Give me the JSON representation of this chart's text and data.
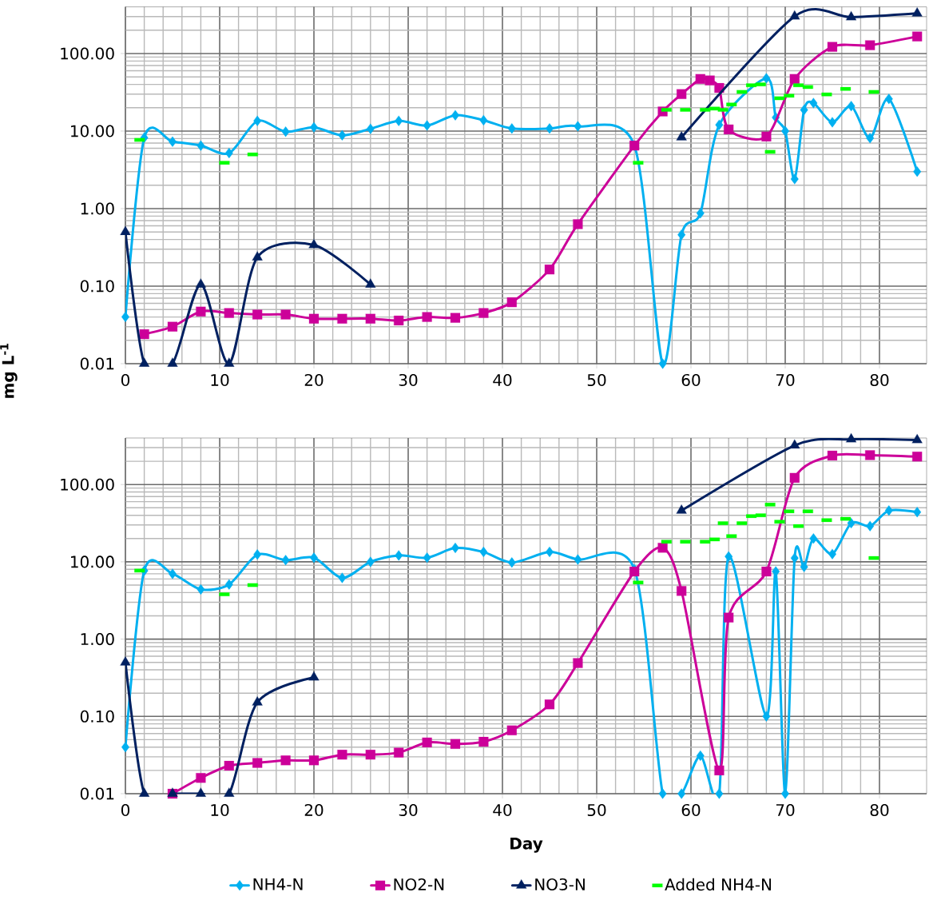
{
  "chart_data": [
    {
      "type": "line",
      "ylabel": "mg L$^{-1}$",
      "log": "y",
      "grid": true,
      "xlim": [
        0,
        85
      ],
      "ylim": [
        0.01,
        400
      ],
      "xticks": [
        0,
        10,
        20,
        30,
        40,
        50,
        60,
        70,
        80
      ],
      "yticks": [
        {
          "value": 0.01,
          "label": "0.01"
        },
        {
          "value": 0.1,
          "label": "0.10"
        },
        {
          "value": 1,
          "label": "1.00"
        },
        {
          "value": 10,
          "label": "10.00"
        },
        {
          "value": 100,
          "label": "100.00"
        }
      ],
      "series": [
        {
          "type": "line",
          "marker": "diamond",
          "color": "#00b0f0",
          "x": [
            0,
            2,
            5,
            8,
            11,
            14,
            17,
            20,
            23,
            26,
            29,
            32,
            35,
            38,
            41,
            45,
            48,
            54,
            57,
            59,
            61,
            63,
            68,
            69,
            70,
            71,
            72,
            73,
            75,
            77,
            79,
            81,
            84
          ],
          "values": [
            0.04,
            8.2,
            7.3,
            6.5,
            5.2,
            13.5,
            9.8,
            11.2,
            8.8,
            10.7,
            13.5,
            11.8,
            16,
            13.8,
            10.8,
            10.8,
            11.5,
            6.5,
            0.01,
            0.46,
            0.87,
            12,
            48,
            15,
            10,
            2.4,
            18.7,
            23,
            13,
            21,
            8.1,
            26,
            3.0
          ]
        },
        {
          "type": "line",
          "marker": "square",
          "color": "#cc0099",
          "x": [
            2,
            5,
            8,
            11,
            14,
            17,
            20,
            23,
            26,
            29,
            32,
            35,
            38,
            41,
            45,
            48,
            54,
            57,
            59,
            61,
            62,
            63,
            64,
            68,
            71,
            75,
            79,
            84
          ],
          "values": [
            0.024,
            0.03,
            0.047,
            0.045,
            0.043,
            0.043,
            0.038,
            0.038,
            0.038,
            0.036,
            0.04,
            0.039,
            0.045,
            0.062,
            0.164,
            0.63,
            6.5,
            17.9,
            30,
            47,
            45,
            36,
            10.5,
            8.5,
            47,
            122,
            128,
            166
          ]
        },
        {
          "type": "line",
          "marker": "triangle",
          "color": "#002060",
          "x": [
            0,
            2,
            5,
            8,
            11,
            14,
            20,
            26,
            null,
            59,
            71,
            77,
            84
          ],
          "values": [
            0.5,
            0.01,
            0.01,
            0.105,
            0.01,
            0.235,
            0.34,
            0.105,
            null,
            8.3,
            302,
            295,
            330
          ]
        },
        {
          "type": "scatter",
          "color": "#00ff00",
          "x": [
            1.5,
            10.5,
            13.5,
            54.4,
            57.4,
            59.4,
            61.5,
            62.5,
            63.4,
            64.3,
            65.4,
            66.4,
            67.4,
            68.4,
            69.4,
            70.4,
            71.4,
            72.4,
            74.4,
            76.4,
            79.4
          ],
          "values": [
            7.7,
            3.9,
            5.0,
            3.9,
            18.8,
            18.8,
            18.8,
            19.5,
            18.8,
            22,
            32,
            39,
            40,
            5.4,
            26.5,
            28.6,
            39,
            37,
            29.7,
            35,
            32
          ]
        }
      ]
    },
    {
      "type": "line",
      "xlabel": "Day",
      "log": "y",
      "grid": true,
      "legend": "bottom",
      "xlim": [
        0,
        85
      ],
      "ylim": [
        0.01,
        400
      ],
      "xticks": [
        0,
        10,
        20,
        30,
        40,
        50,
        60,
        70,
        80
      ],
      "yticks": [
        {
          "value": 0.01,
          "label": "0.01"
        },
        {
          "value": 0.1,
          "label": "0.10"
        },
        {
          "value": 1,
          "label": "1.00"
        },
        {
          "value": 10,
          "label": "10.00"
        },
        {
          "value": 100,
          "label": "100.00"
        }
      ],
      "series": [
        {
          "name": "NH4-N",
          "type": "line",
          "marker": "diamond",
          "color": "#00b0f0",
          "x": [
            0,
            2,
            5,
            8,
            11,
            14,
            17,
            20,
            23,
            26,
            29,
            32,
            35,
            38,
            41,
            45,
            48,
            54,
            57,
            59,
            61,
            63,
            64,
            68,
            69,
            70,
            71,
            72,
            73,
            75,
            77,
            79,
            81,
            84
          ],
          "values": [
            0.04,
            7.7,
            7.0,
            4.4,
            5.1,
            12.4,
            10.5,
            11.3,
            6.2,
            10,
            12.1,
            11.3,
            15.1,
            13.4,
            9.8,
            13.4,
            10.7,
            8,
            0.01,
            0.01,
            0.031,
            0.01,
            11.7,
            0.1,
            7.5,
            0.01,
            11.2,
            8.6,
            20,
            12.6,
            31.6,
            29,
            46,
            44
          ]
        },
        {
          "name": "NO2-N",
          "type": "line",
          "marker": "square",
          "color": "#cc0099",
          "x": [
            5,
            8,
            11,
            14,
            17,
            20,
            23,
            26,
            29,
            32,
            35,
            38,
            41,
            45,
            48,
            54,
            57,
            59,
            63,
            64,
            68,
            71,
            75,
            79,
            84
          ],
          "values": [
            0.01,
            0.016,
            0.023,
            0.025,
            0.027,
            0.027,
            0.032,
            0.032,
            0.034,
            0.046,
            0.044,
            0.047,
            0.066,
            0.143,
            0.49,
            7.5,
            15.2,
            4.2,
            0.02,
            1.9,
            7.5,
            122,
            237,
            240,
            230
          ]
        },
        {
          "name": "NO3-N",
          "type": "line",
          "marker": "triangle",
          "color": "#002060",
          "x": [
            0,
            2,
            5,
            8,
            11,
            14,
            20,
            null,
            59,
            71,
            77,
            84
          ],
          "values": [
            0.5,
            0.01,
            0.01,
            0.01,
            0.01,
            0.152,
            0.32,
            null,
            46,
            320,
            385,
            376
          ]
        },
        {
          "name": "Added NH4-N",
          "type": "scatter",
          "color": "#00ff00",
          "x": [
            1.5,
            10.5,
            13.5,
            54.4,
            57.4,
            59.4,
            61.5,
            62.5,
            63.4,
            64.3,
            65.4,
            66.4,
            67.4,
            68.4,
            69.4,
            70.4,
            71.4,
            72.4,
            74.4,
            76.4,
            79.4
          ],
          "values": [
            7.7,
            3.8,
            5.0,
            5.4,
            18.2,
            18.2,
            18.2,
            19.5,
            31.6,
            21.5,
            31.6,
            39,
            40,
            55,
            33,
            45,
            29,
            45,
            34.6,
            36,
            11.2
          ]
        }
      ]
    }
  ]
}
